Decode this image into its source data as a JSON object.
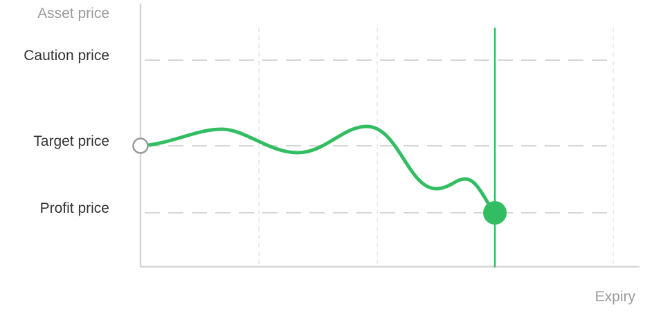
{
  "axes": {
    "y_title": "Asset price",
    "x_title": "Expiry"
  },
  "levels": [
    {
      "id": "caution",
      "label": "Caution price"
    },
    {
      "id": "target",
      "label": "Target price"
    },
    {
      "id": "profit",
      "label": "Profit price"
    }
  ],
  "colors": {
    "accent": "#32bd63",
    "axis": "#d6d6d6",
    "guide": "#c8c8c8",
    "label": "#333333",
    "muted": "#9a9a9a",
    "start_marker": "#999999"
  },
  "markers": {
    "start": "open-circle",
    "end": "filled-circle"
  }
}
